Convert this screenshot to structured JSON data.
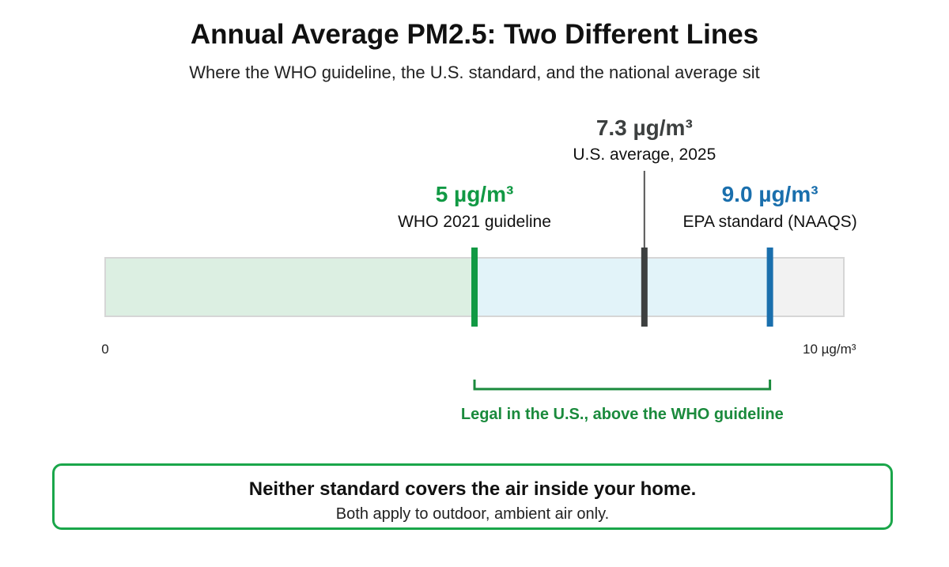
{
  "title": "Annual Average PM2.5: Two Different Lines",
  "subtitle": "Where the WHO guideline, the U.S. standard, and the national average sit",
  "chart_data": {
    "type": "number-line",
    "xlim": [
      0,
      10
    ],
    "tick_labels": [
      {
        "value": 0,
        "label": "0"
      },
      {
        "value": 10,
        "label": "10 µg/m³"
      }
    ],
    "zones": [
      {
        "from": 0,
        "to": 5,
        "color": "#dcefe2"
      },
      {
        "from": 5,
        "to": 9.0,
        "color": "#e2f3f9"
      },
      {
        "from": 9.0,
        "to": 10,
        "color": "#f2f2f2"
      }
    ],
    "markers": [
      {
        "value": 5,
        "value_label": "5 µg/m³",
        "label": "WHO 2021 guideline",
        "color": "#119944",
        "label_position": "near"
      },
      {
        "value": 7.3,
        "value_label": "7.3 µg/m³",
        "label": "U.S. average, 2025",
        "color": "#3d4040",
        "label_position": "high"
      },
      {
        "value": 9.0,
        "value_label": "9.0 µg/m³",
        "label": "EPA standard (NAAQS)",
        "color": "#1a6fad",
        "label_position": "near"
      }
    ],
    "bracket": {
      "from": 5,
      "to": 9.0,
      "label": "Legal in the U.S., above the WHO guideline",
      "color": "#1a8a3c"
    }
  },
  "note": {
    "title": "Neither standard covers the air inside your home.",
    "text": "Both apply to outdoor, ambient air only.",
    "border_color": "#1aa64a"
  }
}
